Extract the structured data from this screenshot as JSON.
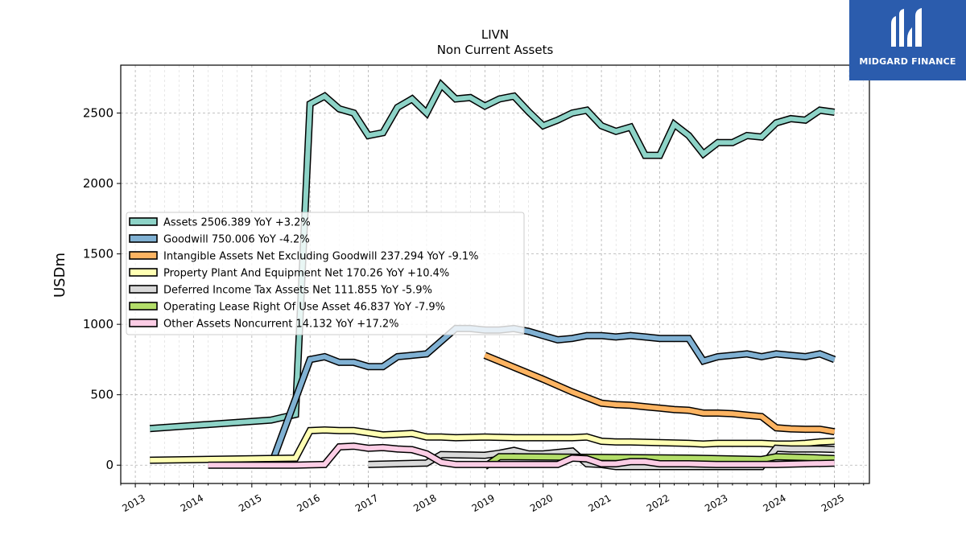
{
  "logo": {
    "text": "MIDGARD FINANCE",
    "bg_color": "#2b5cad"
  },
  "chart_data": {
    "type": "line",
    "title": "LIVN",
    "subtitle": "Non Current  Assets",
    "ylabel": "USDm",
    "xlabel": "",
    "xlim": [
      2012.75,
      2025.6
    ],
    "ylim": [
      -130,
      2840
    ],
    "yticks": [
      0,
      500,
      1000,
      1500,
      2000,
      2500
    ],
    "xticks": [
      2013,
      2014,
      2015,
      2016,
      2017,
      2018,
      2019,
      2020,
      2021,
      2022,
      2023,
      2024,
      2025
    ],
    "grid": true,
    "legend_position": "upper-left",
    "series": [
      {
        "name": "Assets",
        "legend": "Assets  2506.389 YoY +3.2%",
        "color": "#8dd3c7",
        "points": [
          [
            2013.25,
            260
          ],
          [
            2015.33,
            320
          ],
          [
            2015.75,
            360
          ],
          [
            2016.0,
            2565
          ],
          [
            2016.25,
            2620
          ],
          [
            2016.5,
            2530
          ],
          [
            2016.75,
            2500
          ],
          [
            2017.0,
            2340
          ],
          [
            2017.25,
            2360
          ],
          [
            2017.5,
            2540
          ],
          [
            2017.75,
            2600
          ],
          [
            2018.0,
            2500
          ],
          [
            2018.25,
            2700
          ],
          [
            2018.5,
            2600
          ],
          [
            2018.75,
            2610
          ],
          [
            2019.0,
            2550
          ],
          [
            2019.25,
            2600
          ],
          [
            2019.5,
            2620
          ],
          [
            2019.75,
            2510
          ],
          [
            2020.0,
            2410
          ],
          [
            2020.25,
            2450
          ],
          [
            2020.5,
            2500
          ],
          [
            2020.75,
            2520
          ],
          [
            2021.0,
            2410
          ],
          [
            2021.25,
            2370
          ],
          [
            2021.5,
            2400
          ],
          [
            2021.75,
            2200
          ],
          [
            2022.0,
            2200
          ],
          [
            2022.25,
            2420
          ],
          [
            2022.5,
            2340
          ],
          [
            2022.75,
            2210
          ],
          [
            2023.0,
            2290
          ],
          [
            2023.25,
            2290
          ],
          [
            2023.5,
            2340
          ],
          [
            2023.75,
            2330
          ],
          [
            2024.0,
            2430
          ],
          [
            2024.25,
            2460
          ],
          [
            2024.5,
            2450
          ],
          [
            2024.75,
            2520
          ],
          [
            2025.0,
            2506
          ]
        ]
      },
      {
        "name": "Goodwill",
        "legend": "Goodwill  750.006 YoY -4.2%",
        "color": "#80b1d3",
        "points": [
          [
            2015.33,
            0
          ],
          [
            2016.0,
            750
          ],
          [
            2016.25,
            770
          ],
          [
            2016.5,
            730
          ],
          [
            2016.75,
            730
          ],
          [
            2017.0,
            700
          ],
          [
            2017.25,
            700
          ],
          [
            2017.5,
            770
          ],
          [
            2017.75,
            780
          ],
          [
            2018.0,
            790
          ],
          [
            2018.5,
            970
          ],
          [
            2018.75,
            970
          ],
          [
            2019.0,
            960
          ],
          [
            2019.25,
            960
          ],
          [
            2019.5,
            970
          ],
          [
            2019.75,
            950
          ],
          [
            2020.0,
            920
          ],
          [
            2020.25,
            890
          ],
          [
            2020.5,
            900
          ],
          [
            2020.75,
            920
          ],
          [
            2021.0,
            920
          ],
          [
            2021.25,
            910
          ],
          [
            2021.5,
            920
          ],
          [
            2021.75,
            910
          ],
          [
            2022.0,
            900
          ],
          [
            2022.5,
            900
          ],
          [
            2022.75,
            740
          ],
          [
            2023.0,
            770
          ],
          [
            2023.25,
            780
          ],
          [
            2023.5,
            790
          ],
          [
            2023.75,
            770
          ],
          [
            2024.0,
            790
          ],
          [
            2024.25,
            780
          ],
          [
            2024.5,
            770
          ],
          [
            2024.75,
            790
          ],
          [
            2025.0,
            750
          ]
        ]
      },
      {
        "name": "Intangible Assets Net Excluding Goodwill",
        "legend": "Intangible Assets Net Excluding Goodwill  237.294 YoY -9.1%",
        "color": "#fdb462",
        "points": [
          [
            2019.0,
            780
          ],
          [
            2020.0,
            610
          ],
          [
            2020.5,
            520
          ],
          [
            2021.0,
            440
          ],
          [
            2021.25,
            430
          ],
          [
            2021.5,
            425
          ],
          [
            2021.75,
            415
          ],
          [
            2022.0,
            405
          ],
          [
            2022.25,
            395
          ],
          [
            2022.5,
            390
          ],
          [
            2022.75,
            370
          ],
          [
            2023.0,
            370
          ],
          [
            2023.25,
            365
          ],
          [
            2023.5,
            355
          ],
          [
            2023.75,
            345
          ],
          [
            2024.0,
            265
          ],
          [
            2024.25,
            258
          ],
          [
            2024.5,
            255
          ],
          [
            2024.75,
            255
          ],
          [
            2025.0,
            237
          ]
        ]
      },
      {
        "name": "Property Plant And Equipment Net",
        "legend": "Property Plant And Equipment Net  170.26 YoY +10.4%",
        "color": "#ffffb3",
        "points": [
          [
            2013.25,
            35
          ],
          [
            2015.75,
            50
          ],
          [
            2016.0,
            245
          ],
          [
            2016.25,
            250
          ],
          [
            2016.5,
            245
          ],
          [
            2016.75,
            245
          ],
          [
            2017.25,
            215
          ],
          [
            2017.5,
            220
          ],
          [
            2017.75,
            225
          ],
          [
            2018.0,
            200
          ],
          [
            2018.25,
            200
          ],
          [
            2018.5,
            195
          ],
          [
            2019.0,
            200
          ],
          [
            2019.5,
            195
          ],
          [
            2020.0,
            195
          ],
          [
            2020.5,
            195
          ],
          [
            2020.75,
            200
          ],
          [
            2021.0,
            170
          ],
          [
            2021.25,
            165
          ],
          [
            2021.5,
            165
          ],
          [
            2022.0,
            160
          ],
          [
            2022.5,
            155
          ],
          [
            2022.75,
            150
          ],
          [
            2023.0,
            155
          ],
          [
            2023.5,
            155
          ],
          [
            2023.75,
            155
          ],
          [
            2024.0,
            150
          ],
          [
            2024.25,
            150
          ],
          [
            2024.5,
            155
          ],
          [
            2024.75,
            165
          ],
          [
            2025.0,
            170
          ]
        ]
      },
      {
        "name": "Deferred Income Tax Assets Net",
        "legend": "Deferred Income Tax Assets Net  111.855 YoY -5.9%",
        "color": "#d9d9d9",
        "points": [
          [
            2017.0,
            5
          ],
          [
            2018.0,
            15
          ],
          [
            2018.25,
            75
          ],
          [
            2019.0,
            70
          ],
          [
            2019.25,
            85
          ],
          [
            2019.5,
            105
          ],
          [
            2019.75,
            80
          ],
          [
            2020.0,
            80
          ],
          [
            2020.25,
            90
          ],
          [
            2020.5,
            100
          ],
          [
            2020.75,
            10
          ],
          [
            2021.0,
            5
          ],
          [
            2021.25,
            -10
          ],
          [
            2023.75,
            -10
          ],
          [
            2024.0,
            120
          ],
          [
            2024.25,
            115
          ],
          [
            2024.5,
            115
          ],
          [
            2024.75,
            115
          ],
          [
            2025.0,
            112
          ]
        ]
      },
      {
        "name": "Operating Lease Right Of Use Asset",
        "legend": "Operating Lease Right Of Use Asset  46.837 YoY -7.9%",
        "color": "#b3de69",
        "points": [
          [
            2019.0,
            -10
          ],
          [
            2019.25,
            60
          ],
          [
            2021.0,
            55
          ],
          [
            2022.5,
            50
          ],
          [
            2023.75,
            40
          ],
          [
            2024.0,
            60
          ],
          [
            2024.5,
            55
          ],
          [
            2025.0,
            47
          ]
        ]
      },
      {
        "name": "Other Assets Noncurrent",
        "legend": "Other Assets Noncurrent  14.132 YoY +17.2%",
        "color": "#fccde5",
        "points": [
          [
            2014.25,
            0
          ],
          [
            2015.75,
            0
          ],
          [
            2016.25,
            5
          ],
          [
            2016.5,
            130
          ],
          [
            2016.75,
            135
          ],
          [
            2017.0,
            120
          ],
          [
            2017.25,
            125
          ],
          [
            2017.5,
            115
          ],
          [
            2017.75,
            110
          ],
          [
            2018.0,
            80
          ],
          [
            2018.25,
            20
          ],
          [
            2018.5,
            5
          ],
          [
            2019.0,
            5
          ],
          [
            2020.25,
            5
          ],
          [
            2020.5,
            50
          ],
          [
            2020.75,
            45
          ],
          [
            2021.0,
            10
          ],
          [
            2021.25,
            10
          ],
          [
            2021.5,
            25
          ],
          [
            2021.75,
            25
          ],
          [
            2022.0,
            10
          ],
          [
            2022.5,
            10
          ],
          [
            2023.0,
            5
          ],
          [
            2024.0,
            5
          ],
          [
            2024.5,
            10
          ],
          [
            2025.0,
            14
          ]
        ]
      }
    ]
  }
}
